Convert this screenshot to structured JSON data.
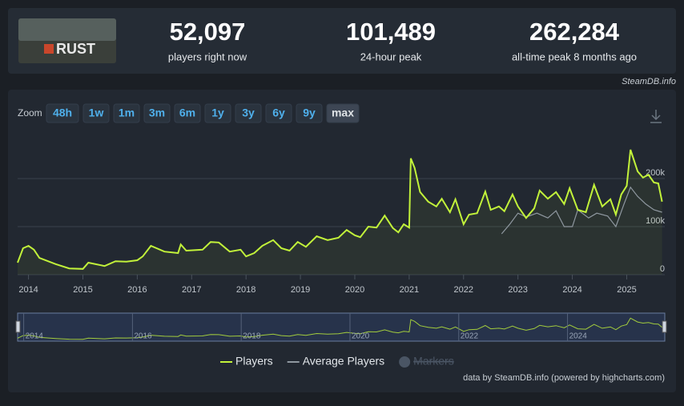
{
  "header": {
    "logo_text": "RUST",
    "stats": [
      {
        "value": "52,097",
        "label": "players right now"
      },
      {
        "value": "101,489",
        "label": "24-hour peak"
      },
      {
        "value": "262,284",
        "label": "all-time peak 8 months ago"
      }
    ]
  },
  "source": "SteamDB.info",
  "zoom": {
    "label": "Zoom",
    "options": [
      "48h",
      "1w",
      "1m",
      "3m",
      "6m",
      "1y",
      "3y",
      "6y",
      "9y",
      "max"
    ],
    "active": 9
  },
  "chart_data": {
    "type": "line",
    "xlim": [
      2013.8,
      2025.7
    ],
    "xticks": [
      2014,
      2015,
      2016,
      2017,
      2018,
      2019,
      2020,
      2021,
      2022,
      2023,
      2024,
      2025
    ],
    "ylim": [
      0,
      300000
    ],
    "yticks": [
      0,
      {
        "value": 100000,
        "label": "100k"
      },
      {
        "value": 200000,
        "label": "200k"
      }
    ],
    "grid": true,
    "series": [
      {
        "name": "Players",
        "color": "#c2f23a",
        "x": [
          2013.8,
          2013.9,
          2014.0,
          2014.1,
          2014.2,
          2014.5,
          2014.75,
          2015.0,
          2015.1,
          2015.4,
          2015.6,
          2015.8,
          2016.0,
          2016.1,
          2016.25,
          2016.5,
          2016.75,
          2016.8,
          2016.9,
          2017.2,
          2017.35,
          2017.5,
          2017.7,
          2017.9,
          2018.0,
          2018.15,
          2018.3,
          2018.5,
          2018.65,
          2018.8,
          2018.95,
          2019.1,
          2019.3,
          2019.5,
          2019.7,
          2019.85,
          2020.0,
          2020.1,
          2020.25,
          2020.4,
          2020.55,
          2020.7,
          2020.8,
          2020.9,
          2021.0,
          2021.03,
          2021.1,
          2021.2,
          2021.35,
          2021.5,
          2021.6,
          2021.75,
          2021.85,
          2022.0,
          2022.1,
          2022.25,
          2022.4,
          2022.5,
          2022.65,
          2022.75,
          2022.9,
          2023.0,
          2023.15,
          2023.3,
          2023.4,
          2023.55,
          2023.7,
          2023.85,
          2023.95,
          2024.1,
          2024.25,
          2024.4,
          2024.55,
          2024.7,
          2024.8,
          2024.9,
          2025.0,
          2025.07,
          2025.2,
          2025.3,
          2025.4,
          2025.5,
          2025.58,
          2025.65
        ],
        "values": [
          25000,
          55000,
          60000,
          52000,
          35000,
          22000,
          13000,
          12000,
          25000,
          18000,
          28000,
          27000,
          30000,
          38000,
          60000,
          48000,
          45000,
          63000,
          50000,
          52000,
          68000,
          67000,
          48000,
          52000,
          38000,
          45000,
          60000,
          72000,
          55000,
          50000,
          68000,
          58000,
          80000,
          72000,
          77000,
          93000,
          82000,
          78000,
          100000,
          98000,
          123000,
          97000,
          88000,
          105000,
          98000,
          242000,
          222000,
          172000,
          152000,
          142000,
          158000,
          130000,
          157000,
          105000,
          125000,
          128000,
          173000,
          135000,
          142000,
          132000,
          167000,
          142000,
          118000,
          138000,
          175000,
          158000,
          172000,
          147000,
          180000,
          135000,
          130000,
          187000,
          142000,
          157000,
          125000,
          167000,
          185000,
          260000,
          215000,
          202000,
          208000,
          192000,
          190000,
          152000
        ]
      },
      {
        "name": "Average Players",
        "color": "#8f98a0",
        "x": [
          2022.7,
          2022.85,
          2023.0,
          2023.15,
          2023.35,
          2023.55,
          2023.7,
          2023.85,
          2024.0,
          2024.1,
          2024.3,
          2024.45,
          2024.65,
          2024.8,
          2024.95,
          2025.07,
          2025.2,
          2025.35,
          2025.5,
          2025.65
        ],
        "values": [
          85000,
          105000,
          128000,
          120000,
          128000,
          118000,
          133000,
          100000,
          100000,
          135000,
          118000,
          128000,
          122000,
          100000,
          147000,
          182000,
          163000,
          147000,
          135000,
          130000
        ]
      }
    ],
    "markers_label": "Markers",
    "navigator_labels": [
      2014,
      2016,
      2018,
      2020,
      2022,
      2024
    ],
    "credits": "data by SteamDB.info (powered by highcharts.com)"
  }
}
